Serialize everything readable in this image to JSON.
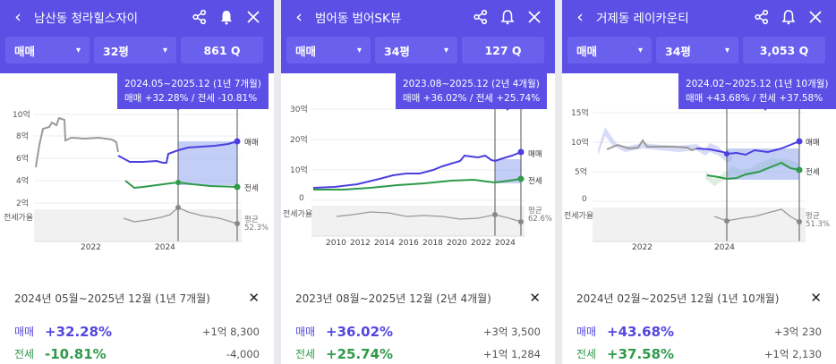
{
  "icons": {
    "back": "chevron-left-icon",
    "share": "share-icon",
    "bell": "bell-icon",
    "close": "close-x-icon",
    "search": "search-icon",
    "dropdown": "chevron-down-icon"
  },
  "colors": {
    "header": "#5b4fe6",
    "sale": "#5346e0",
    "rent": "#2e9a4a",
    "price_line": "#999999"
  },
  "panels": [
    {
      "title": "남산동 청라힐스자이",
      "filters": {
        "type": "매매",
        "size": "32평",
        "count": "861"
      },
      "tooltip": {
        "period": "2024.05~2025.12 (1년 7개월)",
        "summary": "매매 +32.28%  /  전세 -10.81%"
      },
      "y_ticks": [
        "10억",
        "8억",
        "6억",
        "4억",
        "2억"
      ],
      "x_ticks": [
        "2022",
        "2024"
      ],
      "legend": {
        "sale": "매매",
        "rent": "전세",
        "avg": "평균",
        "avg_val": "52.3%",
        "ratio": "전세가율"
      },
      "bottom": {
        "period": "2024년 05월~2025년 12월 (1년 7개월)",
        "sale_label": "매매",
        "sale_pct": "+32.28%",
        "sale_amt": "+1억 8,300",
        "rent_label": "전세",
        "rent_pct": "-10.81%",
        "rent_amt": "-4,000"
      }
    },
    {
      "title": "범어동 범어SK뷰",
      "filters": {
        "type": "매매",
        "size": "34평",
        "count": "127"
      },
      "tooltip": {
        "period": "2023.08~2025.12 (2년 4개월)",
        "summary": "매매 +36.02%  /  전세 +25.74%"
      },
      "y_ticks": [
        "30억",
        "20억",
        "10억",
        "0"
      ],
      "x_ticks": [
        "2010",
        "2012",
        "2014",
        "2016",
        "2018",
        "2020",
        "2022",
        "2024"
      ],
      "legend": {
        "sale": "매매",
        "rent": "전세",
        "avg": "평균",
        "avg_val": "62.6%",
        "ratio": "전세가율"
      },
      "bottom": {
        "period": "2023년 08월~2025년 12월 (2년 4개월)",
        "sale_label": "매매",
        "sale_pct": "+36.02%",
        "sale_amt": "+3억 3,500",
        "rent_label": "전세",
        "rent_pct": "+25.74%",
        "rent_amt": "+1억 1,284"
      }
    },
    {
      "title": "거제동 레이카운티",
      "filters": {
        "type": "매매",
        "size": "34평",
        "count": "3,053"
      },
      "tooltip": {
        "period": "2024.02~2025.12 (1년 10개월)",
        "summary": "매매 +43.68%  /  전세 +37.58%"
      },
      "y_ticks": [
        "15억",
        "10억",
        "5억",
        "0"
      ],
      "x_ticks": [
        "2022",
        "2024"
      ],
      "legend": {
        "sale": "매매",
        "rent": "전세",
        "avg": "평균",
        "avg_val": "51.3%",
        "ratio": "전세가율"
      },
      "bottom": {
        "period": "2024년 02월~2025년 12월 (1년 10개월)",
        "sale_label": "매매",
        "sale_pct": "+43.68%",
        "sale_amt": "+3억 230",
        "rent_label": "전세",
        "rent_pct": "+37.58%",
        "rent_amt": "+1억 2,130"
      }
    }
  ]
}
